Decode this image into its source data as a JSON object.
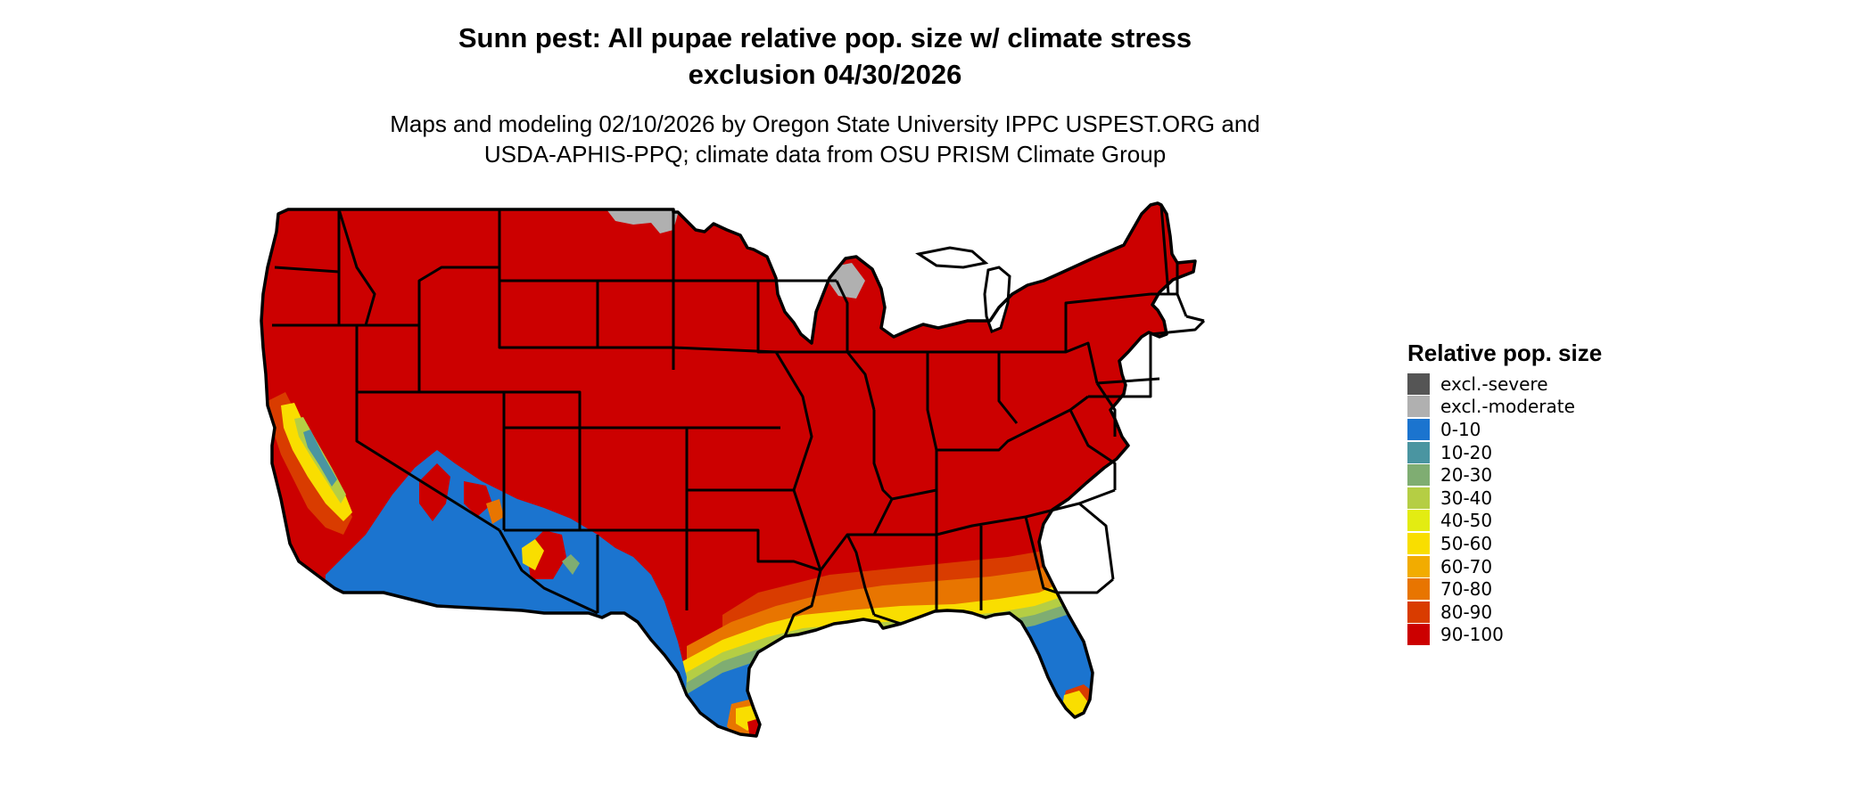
{
  "title": {
    "line1": "Sunn pest: All pupae relative pop. size w/ climate stress",
    "line2": "exclusion 04/30/2026"
  },
  "subtitle": {
    "line1": "Maps and modeling 02/10/2026 by Oregon State University IPPC USPEST.ORG and",
    "line2": "USDA-APHIS-PPQ; climate data from OSU PRISM Climate Group"
  },
  "legend": {
    "title": "Relative pop. size",
    "items": [
      {
        "label": "excl.-severe",
        "color": "#555555"
      },
      {
        "label": "excl.-moderate",
        "color": "#b0b0b0"
      },
      {
        "label": "0-10",
        "color": "#1b74cf"
      },
      {
        "label": "10-20",
        "color": "#4a95a1"
      },
      {
        "label": "20-30",
        "color": "#7fad72"
      },
      {
        "label": "30-40",
        "color": "#b5ce44"
      },
      {
        "label": "40-50",
        "color": "#e3ec12"
      },
      {
        "label": "50-60",
        "color": "#f9de00"
      },
      {
        "label": "60-70",
        "color": "#f2ac00"
      },
      {
        "label": "70-80",
        "color": "#e87500"
      },
      {
        "label": "80-90",
        "color": "#d93c00"
      },
      {
        "label": "90-100",
        "color": "#cc0000"
      }
    ]
  },
  "map": {
    "region": "contiguous United States",
    "colors": {
      "high": "#cc0000",
      "band_80_90": "#d93c00",
      "band_70_80": "#e87500",
      "band_50_60": "#f9de00",
      "band_30_40": "#b5ce44",
      "band_20_30": "#7fad72",
      "low": "#1b74cf",
      "excl_moderate": "#b0b0b0",
      "excl_severe": "#555555",
      "border": "#000000"
    }
  }
}
